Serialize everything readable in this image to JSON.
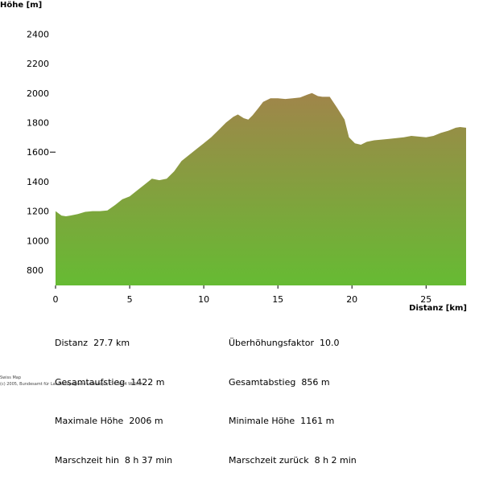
{
  "chart_data": {
    "type": "area",
    "ylabel": "Höhe [m]",
    "xlabel": "Distanz [km]",
    "x_ticks": [
      0,
      5,
      10,
      15,
      20,
      25
    ],
    "y_ticks": [
      800,
      1000,
      1200,
      1400,
      1600,
      1800,
      2000,
      2200,
      2400
    ],
    "xlim": [
      0,
      27.7
    ],
    "ylim": [
      700,
      2400
    ],
    "colors": {
      "top": "#a0854a",
      "bottom": "#66bb33"
    },
    "profile": {
      "x": [
        0,
        0.4,
        0.7,
        1,
        1.5,
        2,
        2.5,
        3,
        3.5,
        4,
        4.5,
        5,
        5.5,
        6,
        6.5,
        7,
        7.5,
        8,
        8.5,
        9,
        9.5,
        10,
        10.5,
        11,
        11.5,
        12,
        12.3,
        12.7,
        13,
        13.3,
        13.7,
        14,
        14.5,
        15,
        15.5,
        16,
        16.5,
        17,
        17.3,
        17.7,
        18,
        18.5,
        19,
        19.5,
        19.8,
        20.2,
        20.6,
        21,
        21.5,
        22,
        22.5,
        23,
        23.5,
        24,
        24.5,
        25,
        25.5,
        26,
        26.5,
        27,
        27.3,
        27.7
      ],
      "y": [
        1200,
        1170,
        1165,
        1170,
        1180,
        1195,
        1200,
        1200,
        1205,
        1240,
        1280,
        1300,
        1340,
        1380,
        1420,
        1410,
        1420,
        1470,
        1540,
        1580,
        1620,
        1660,
        1700,
        1750,
        1800,
        1840,
        1855,
        1830,
        1820,
        1850,
        1900,
        1940,
        1965,
        1965,
        1960,
        1965,
        1970,
        1990,
        2000,
        1980,
        1975,
        1975,
        1900,
        1820,
        1700,
        1660,
        1650,
        1670,
        1680,
        1685,
        1690,
        1695,
        1700,
        1710,
        1705,
        1700,
        1710,
        1730,
        1745,
        1765,
        1770,
        1765
      ]
    }
  },
  "stats": {
    "left": [
      {
        "label": "Distanz",
        "value": "27.7 km"
      },
      {
        "label": "Gesamtaufstieg",
        "value": "1422 m"
      },
      {
        "label": "Maximale Höhe",
        "value": "2006 m"
      },
      {
        "label": "Marschzeit hin",
        "value": "8 h 37 min"
      }
    ],
    "right": [
      {
        "label": "Überhöhungsfaktor",
        "value": "10.0"
      },
      {
        "label": "Gesamtabstieg",
        "value": "856 m"
      },
      {
        "label": "Minimale Höhe",
        "value": "1161 m"
      },
      {
        "label": "Marschzeit zurück",
        "value": "8 h 2 min"
      }
    ]
  },
  "credit": {
    "line1": "Swiss Map",
    "line2": "(c) 2005, Bundesamt für Landestopografie swisstopo, CH-3084 Wabern"
  }
}
